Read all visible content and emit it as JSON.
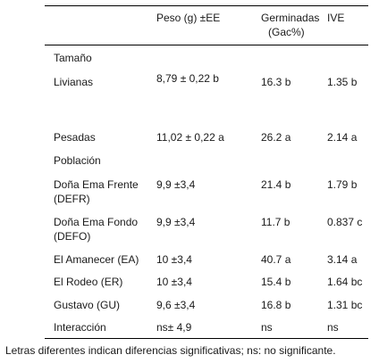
{
  "header": {
    "col_peso": "Peso (g) ±EE",
    "col_germ_1": "Germinadas",
    "col_germ_2": "(Gac%)",
    "col_ive": "IVE"
  },
  "sections": {
    "tamano": "Tamaño",
    "poblacion": "Población"
  },
  "rows": [
    {
      "label": "Livianas",
      "peso": "8,79 ± 0,22 b",
      "germ": "16.3 b",
      "ive": "1.35 b"
    },
    {
      "label": "Pesadas",
      "peso": "11,02 ± 0,22 a",
      "germ": "26.2 a",
      "ive": "2.14 a"
    },
    {
      "label": "Doña Ema Frente",
      "label2": "(DEFR)",
      "peso": "9,9 ±3,4",
      "germ": "21.4 b",
      "ive": "1.79 b"
    },
    {
      "label": "Doña Ema Fondo",
      "label2": "(DEFO)",
      "peso": "9,9 ±3,4",
      "germ": "11.7 b",
      "ive": "0.837 c"
    },
    {
      "label": "El Amanecer (EA)",
      "peso": "10 ±3,4",
      "germ": "40.7 a",
      "ive": "3.14 a"
    },
    {
      "label": "El Rodeo (ER)",
      "peso": "10 ±3,4",
      "germ": "15.4 b",
      "ive": "1.64 bc"
    },
    {
      "label": "Gustavo (GU)",
      "peso": "9,6 ±3,4",
      "germ": "16.8 b",
      "ive": "1.31 bc"
    },
    {
      "label": "Interacción",
      "peso": "ns± 4,9",
      "germ": "ns",
      "ive": "ns"
    }
  ],
  "footnote": "Letras diferentes indican diferencias significativas; ns: no significante."
}
